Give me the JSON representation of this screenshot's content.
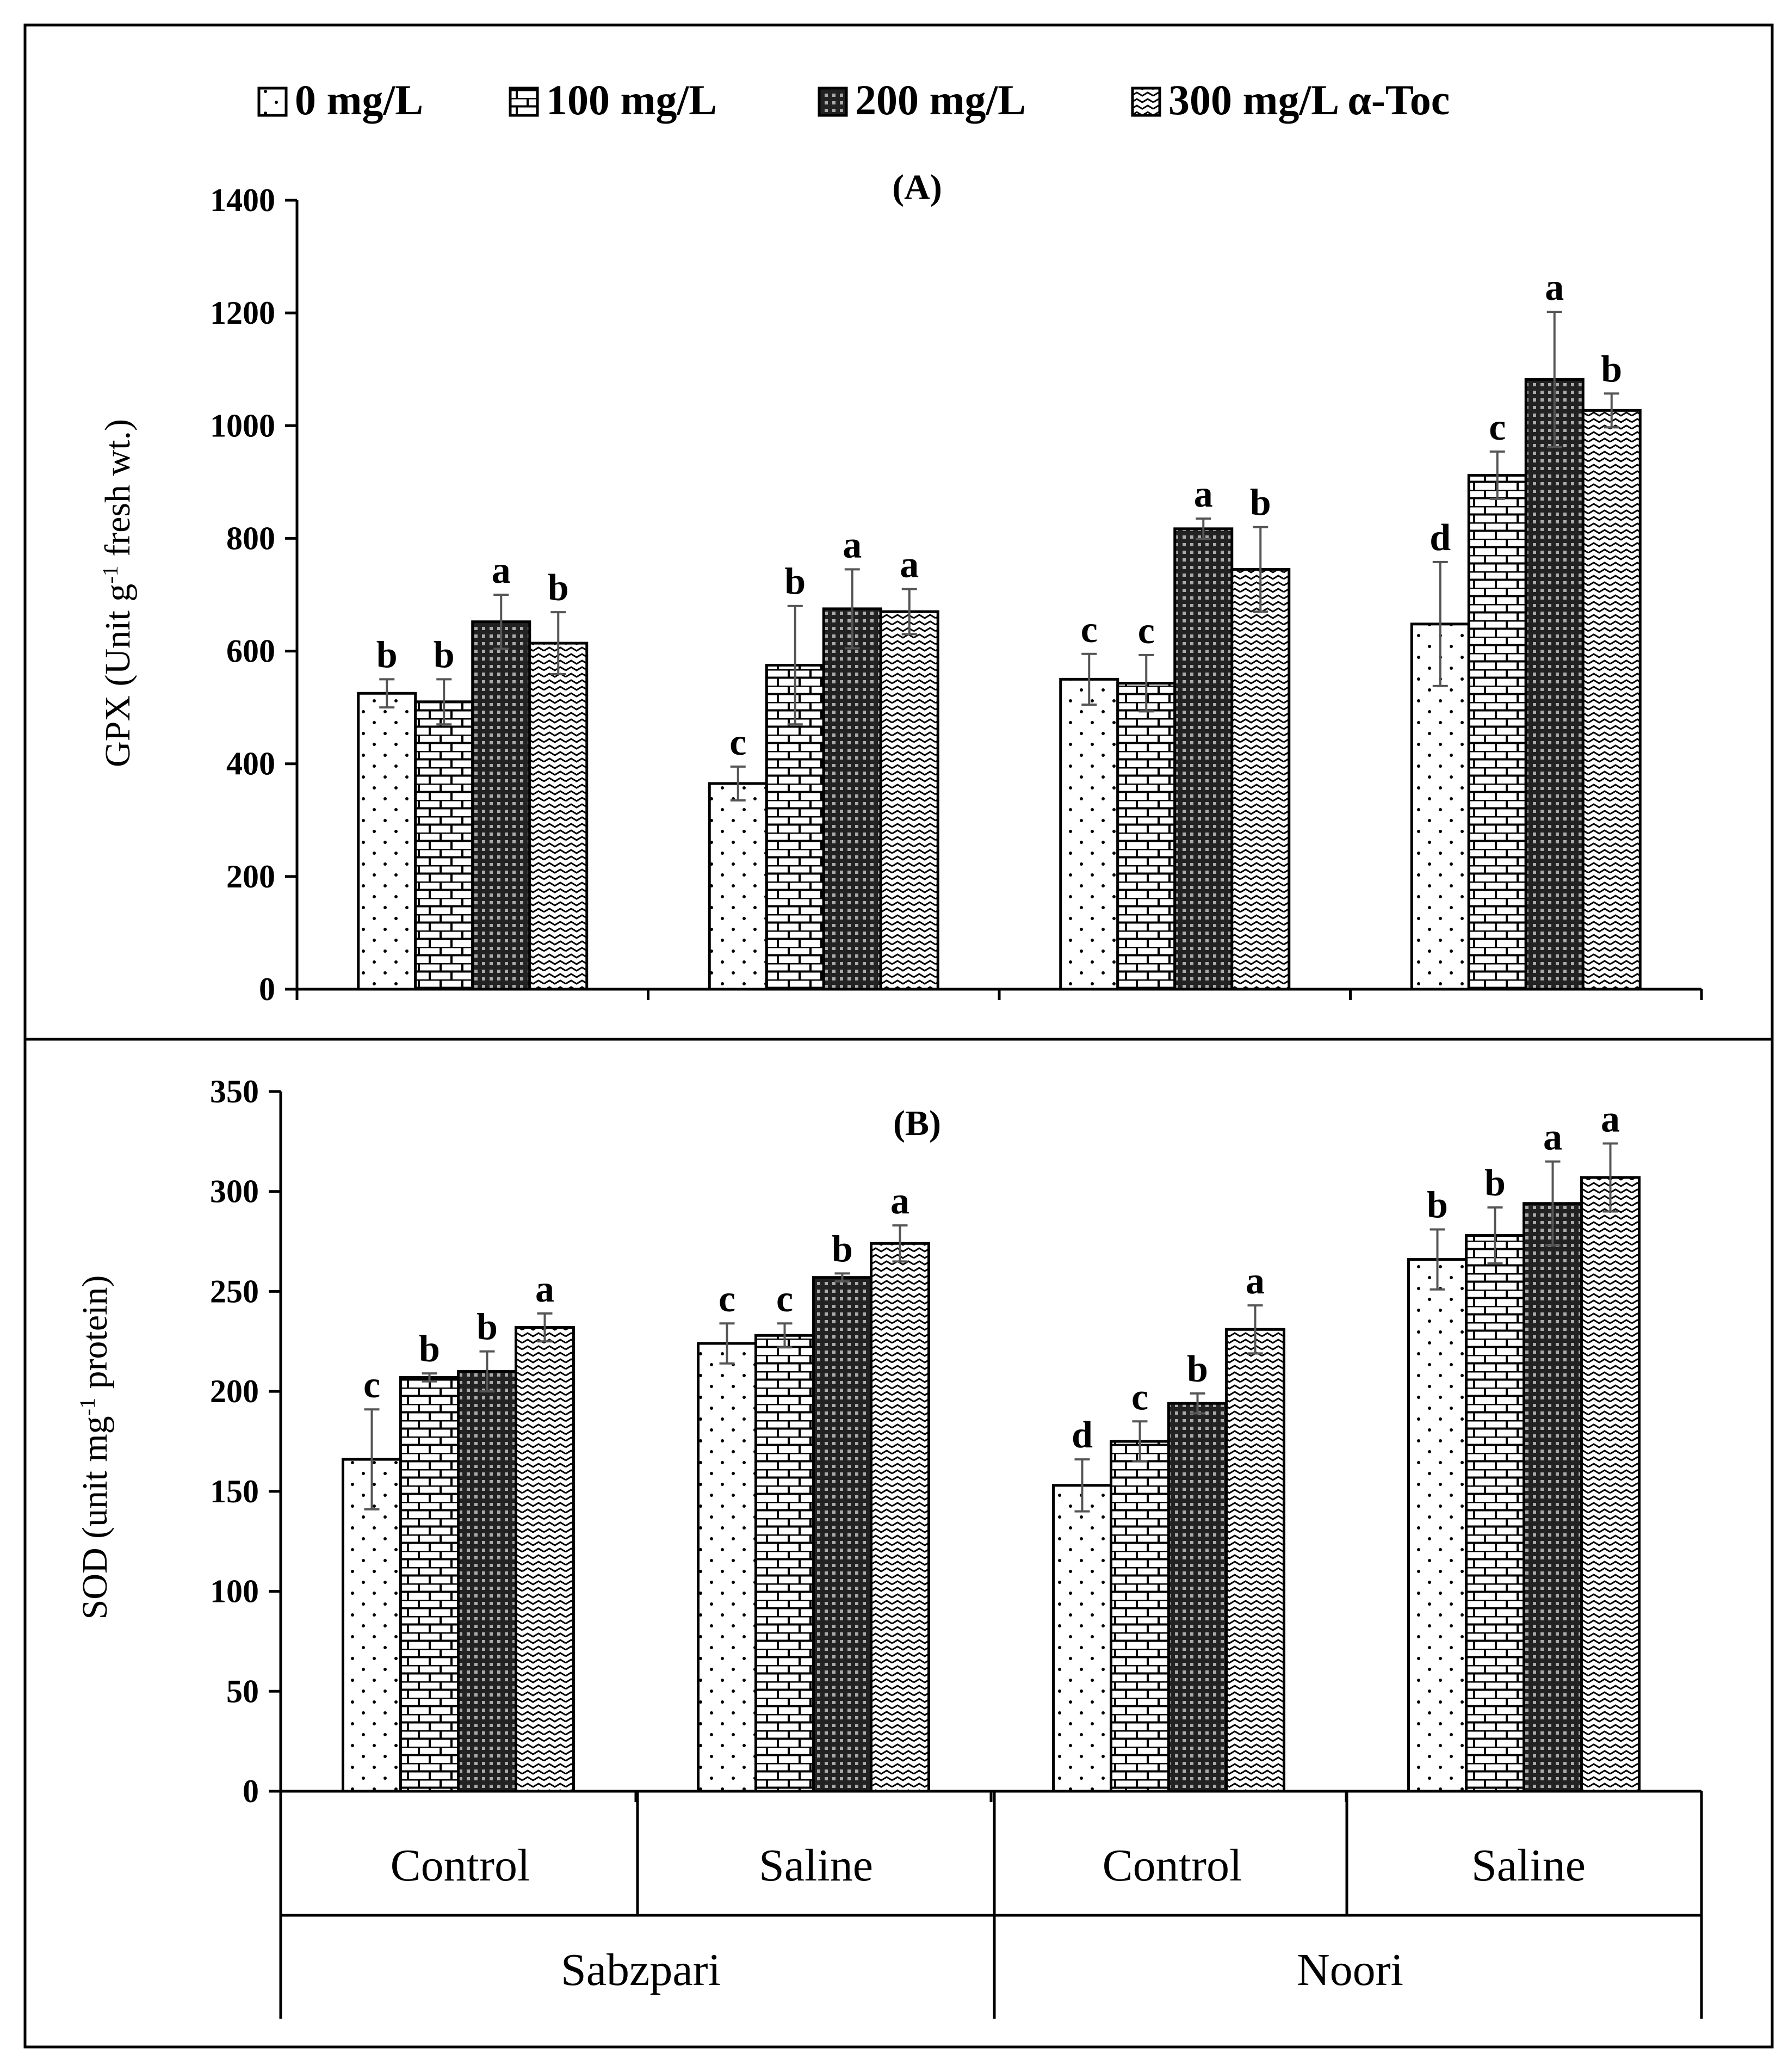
{
  "chart_data": [
    {
      "type": "bar",
      "panel_title": "(A)",
      "ylabel_main": "GPX (Unit g",
      "ylabel_sup": "-1",
      "ylabel_end": " fresh wt.)",
      "ylim": [
        0,
        1400
      ],
      "yticks": [
        "0",
        "200",
        "400",
        "600",
        "800",
        "1000",
        "1200",
        "1400"
      ],
      "categories": [
        "Control",
        "Saline",
        "Control",
        "Saline"
      ],
      "series": [
        {
          "name": "0 mg/L",
          "values": [
            525,
            365,
            550,
            648
          ],
          "errors": [
            25,
            30,
            45,
            110
          ],
          "letters": [
            "b",
            "c",
            "c",
            "d"
          ]
        },
        {
          "name": "100 mg/L",
          "values": [
            510,
            575,
            543,
            912
          ],
          "errors": [
            40,
            105,
            50,
            42
          ],
          "letters": [
            "b",
            "b",
            "c",
            "c"
          ]
        },
        {
          "name": "200 mg/L",
          "values": [
            652,
            675,
            817,
            1082
          ],
          "errors": [
            48,
            70,
            18,
            120
          ],
          "letters": [
            "a",
            "a",
            "a",
            "a"
          ]
        },
        {
          "name": "300 mg/L α-Toc",
          "values": [
            614,
            670,
            745,
            1027
          ],
          "errors": [
            55,
            40,
            75,
            30
          ],
          "letters": [
            "b",
            "a",
            "b",
            "b"
          ]
        }
      ]
    },
    {
      "type": "bar",
      "panel_title": "(B)",
      "ylabel_main": "SOD (unit mg",
      "ylabel_sup": "-1",
      "ylabel_end": " protein)",
      "ylim": [
        0,
        350
      ],
      "yticks": [
        "0",
        "50",
        "100",
        "150",
        "200",
        "250",
        "300",
        "350"
      ],
      "categories": [
        "Control",
        "Saline",
        "Control",
        "Saline"
      ],
      "groups": [
        "Sabzpari",
        "Noori"
      ],
      "series": [
        {
          "name": "0 mg/L",
          "values": [
            166,
            224,
            153,
            266
          ],
          "errors": [
            25,
            10,
            13,
            15
          ],
          "letters": [
            "c",
            "c",
            "d",
            "b"
          ]
        },
        {
          "name": "100 mg/L",
          "values": [
            207,
            228,
            175,
            278
          ],
          "errors": [
            2,
            6,
            10,
            14
          ],
          "letters": [
            "b",
            "c",
            "c",
            "b"
          ]
        },
        {
          "name": "200 mg/L",
          "values": [
            210,
            257,
            194,
            294
          ],
          "errors": [
            10,
            2,
            5,
            21
          ],
          "letters": [
            "b",
            "b",
            "b",
            "a"
          ]
        },
        {
          "name": "300 mg/L α-Toc",
          "values": [
            232,
            274,
            231,
            307
          ],
          "errors": [
            7,
            9,
            12,
            17
          ],
          "letters": [
            "a",
            "a",
            "a",
            "a"
          ]
        }
      ]
    }
  ],
  "legend": {
    "items": [
      "0 mg/L",
      "100 mg/L",
      "200 mg/L",
      "300 mg/L α-Toc"
    ]
  }
}
